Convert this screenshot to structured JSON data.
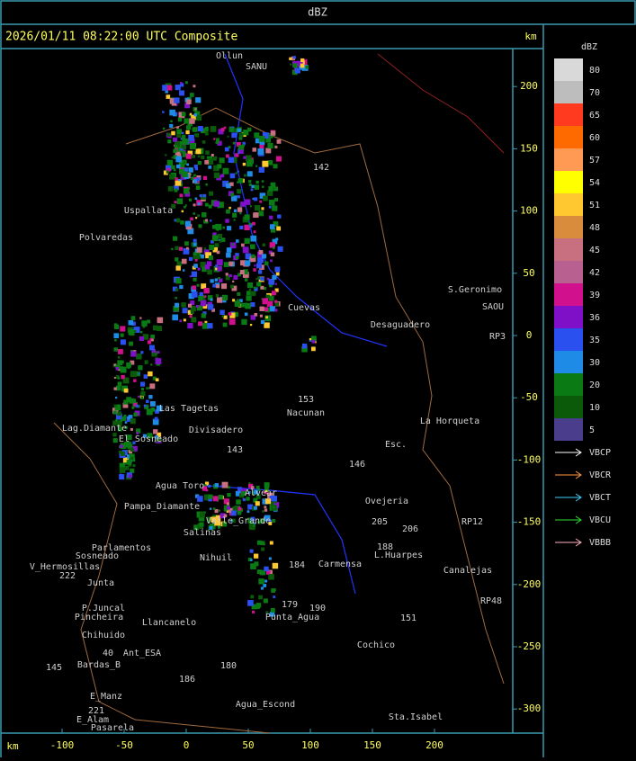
{
  "header": {
    "title": "dBZ",
    "timestamp": "2026/01/11 08:22:00 UTC Composite",
    "unit_top": "km",
    "unit_bottom": "km"
  },
  "axes": {
    "xticks": [
      -100,
      -50,
      0,
      50,
      100,
      150,
      200
    ],
    "yticks": [
      200,
      150,
      100,
      50,
      0,
      -50,
      -100,
      -150,
      -200,
      -250,
      -300
    ]
  },
  "colorbar": {
    "title": "dBZ",
    "levels": [
      {
        "value": 80,
        "color": "#d9d9d9"
      },
      {
        "value": 70,
        "color": "#bdbdbd"
      },
      {
        "value": 65,
        "color": "#ff3a1e"
      },
      {
        "value": 60,
        "color": "#ff6a00"
      },
      {
        "value": 57,
        "color": "#ff9a55"
      },
      {
        "value": 54,
        "color": "#ffff00"
      },
      {
        "value": 51,
        "color": "#ffc830"
      },
      {
        "value": 48,
        "color": "#d88c3c"
      },
      {
        "value": 45,
        "color": "#c87080"
      },
      {
        "value": 42,
        "color": "#b86090"
      },
      {
        "value": 39,
        "color": "#d0108c"
      },
      {
        "value": 36,
        "color": "#8010c8"
      },
      {
        "value": 35,
        "color": "#2a50f0"
      },
      {
        "value": 30,
        "color": "#1e8ce6"
      },
      {
        "value": 20,
        "color": "#0a7a14"
      },
      {
        "value": 10,
        "color": "#0a5a0a"
      },
      {
        "value": 5,
        "color": "#4a3e8c"
      }
    ]
  },
  "legend": [
    {
      "label": "VBCP",
      "color": "#ffffff"
    },
    {
      "label": "VBCR",
      "color": "#ff9a40"
    },
    {
      "label": "VBCT",
      "color": "#40d0ff"
    },
    {
      "label": "VBCU",
      "color": "#30e030"
    },
    {
      "label": "VBBB",
      "color": "#ffb0c0"
    }
  ],
  "places": [
    "Ollun",
    "SANU",
    "Uspallata",
    "Polvaredas",
    "Cuevas",
    "Desaguadero",
    "S.Geronimo",
    "SAOU",
    "La Horqueta",
    "Nacunan",
    "Esc.",
    "Divisadero",
    "Alvear",
    "Las Tagetas",
    "Lag.Diamante",
    "El Sosneado",
    "Agua Toro",
    "Pampa_Diamante",
    "Valle_Grande",
    "Salinas",
    "Parlamentos",
    "Sosneado",
    "V_Hermosillas",
    "Ovejeria",
    "L.Huarpes",
    "Carmensa",
    "Junta",
    "P.Juncal",
    "Pincheira",
    "Llancanelo",
    "Chihuido",
    "Ant_ESA",
    "Punta_Agua",
    "Cochico",
    "Canalejas",
    "Bardas_B",
    "E_Manz",
    "E_Alam",
    "Pasarela",
    "Agua_Escond",
    "Sta.Isabel",
    "Nihuil",
    "142",
    "153",
    "143",
    "146",
    "205",
    "206",
    "188",
    "184",
    "179",
    "190",
    "180",
    "186",
    "151",
    "RP3",
    "RP12",
    "RP48",
    "40",
    "145",
    "221",
    "222"
  ]
}
